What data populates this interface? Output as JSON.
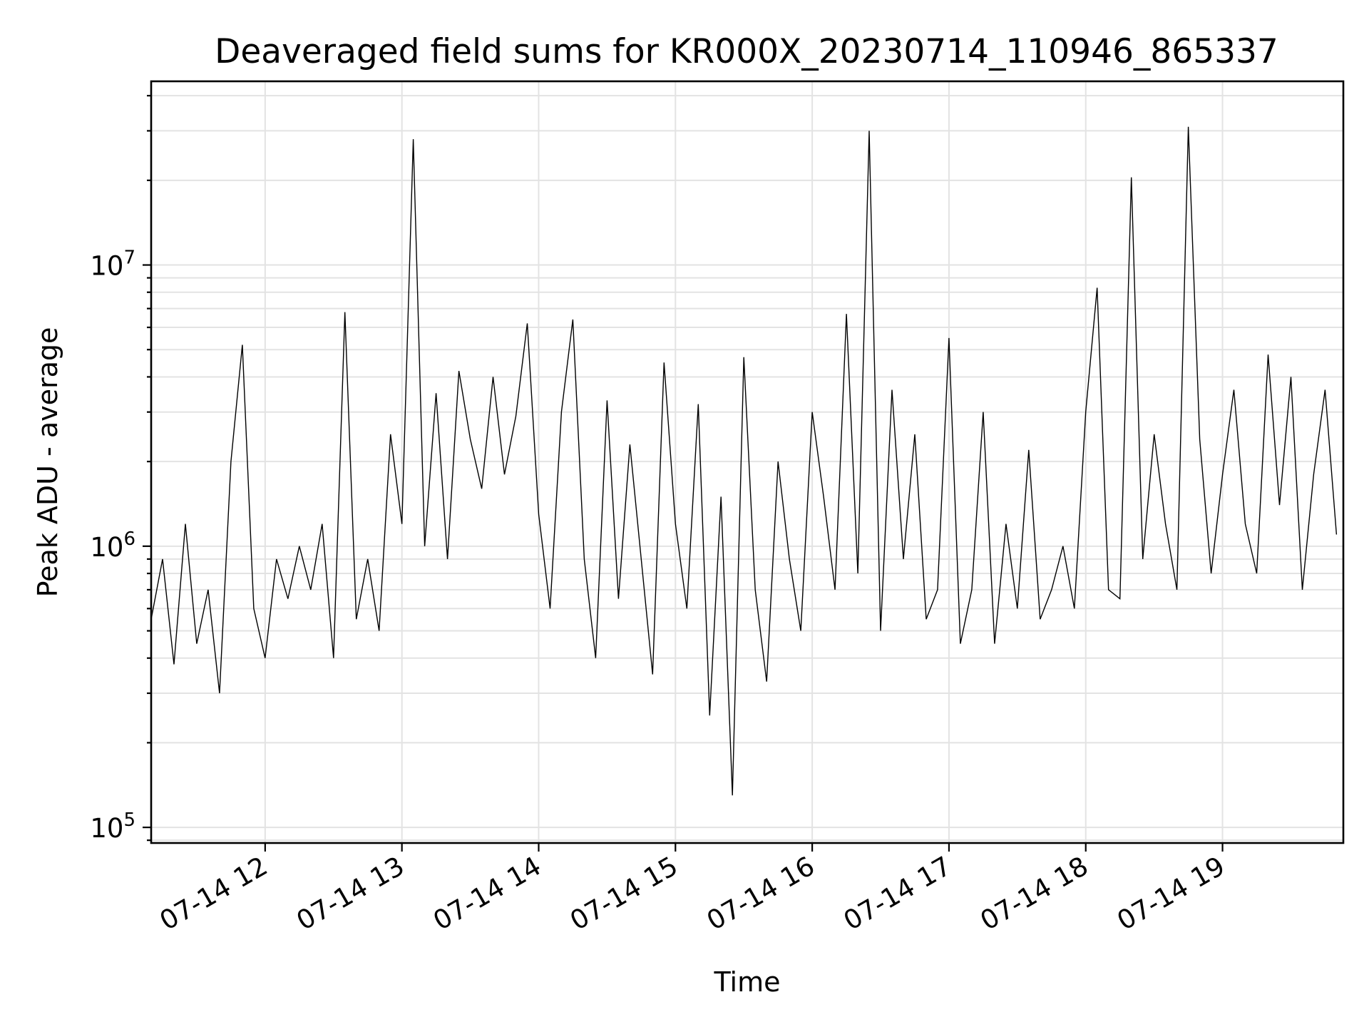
{
  "chart_data": {
    "type": "line",
    "title": "Deaveraged field sums for KR000X_20230714_110946_865337",
    "xlabel": "Time",
    "ylabel": "Peak ADU - average",
    "yscale": "log",
    "ylim": [
      88000,
      45000000
    ],
    "xlim": [
      "2023-07-14 11:10",
      "2023-07-14 19:53"
    ],
    "grid": true,
    "legend": "none",
    "line_color": "#000000",
    "x_ticks": [
      "07-14 12",
      "07-14 13",
      "07-14 14",
      "07-14 15",
      "07-14 16",
      "07-14 17",
      "07-14 18",
      "07-14 19"
    ],
    "y_ticks": [
      {
        "value": 100000,
        "base": "10",
        "exp": "5"
      },
      {
        "value": 1000000,
        "base": "10",
        "exp": "6"
      },
      {
        "value": 10000000,
        "base": "10",
        "exp": "7"
      }
    ],
    "series": [
      {
        "x": [
          "2023-07-14 11:10",
          "2023-07-14 11:15",
          "2023-07-14 11:20",
          "2023-07-14 11:25",
          "2023-07-14 11:30",
          "2023-07-14 11:35",
          "2023-07-14 11:40",
          "2023-07-14 11:45",
          "2023-07-14 11:50",
          "2023-07-14 11:55",
          "2023-07-14 12:00",
          "2023-07-14 12:05",
          "2023-07-14 12:10",
          "2023-07-14 12:15",
          "2023-07-14 12:20",
          "2023-07-14 12:25",
          "2023-07-14 12:30",
          "2023-07-14 12:35",
          "2023-07-14 12:40",
          "2023-07-14 12:45",
          "2023-07-14 12:50",
          "2023-07-14 12:55",
          "2023-07-14 13:00",
          "2023-07-14 13:05",
          "2023-07-14 13:10",
          "2023-07-14 13:15",
          "2023-07-14 13:20",
          "2023-07-14 13:25",
          "2023-07-14 13:30",
          "2023-07-14 13:35",
          "2023-07-14 13:40",
          "2023-07-14 13:45",
          "2023-07-14 13:50",
          "2023-07-14 13:55",
          "2023-07-14 14:00",
          "2023-07-14 14:05",
          "2023-07-14 14:10",
          "2023-07-14 14:15",
          "2023-07-14 14:20",
          "2023-07-14 14:25",
          "2023-07-14 14:30",
          "2023-07-14 14:35",
          "2023-07-14 14:40",
          "2023-07-14 14:45",
          "2023-07-14 14:50",
          "2023-07-14 14:55",
          "2023-07-14 15:00",
          "2023-07-14 15:05",
          "2023-07-14 15:10",
          "2023-07-14 15:15",
          "2023-07-14 15:20",
          "2023-07-14 15:25",
          "2023-07-14 15:30",
          "2023-07-14 15:35",
          "2023-07-14 15:40",
          "2023-07-14 15:45",
          "2023-07-14 15:50",
          "2023-07-14 15:55",
          "2023-07-14 16:00",
          "2023-07-14 16:05",
          "2023-07-14 16:10",
          "2023-07-14 16:15",
          "2023-07-14 16:20",
          "2023-07-14 16:25",
          "2023-07-14 16:30",
          "2023-07-14 16:35",
          "2023-07-14 16:40",
          "2023-07-14 16:45",
          "2023-07-14 16:50",
          "2023-07-14 16:55",
          "2023-07-14 17:00",
          "2023-07-14 17:05",
          "2023-07-14 17:10",
          "2023-07-14 17:15",
          "2023-07-14 17:20",
          "2023-07-14 17:25",
          "2023-07-14 17:30",
          "2023-07-14 17:35",
          "2023-07-14 17:40",
          "2023-07-14 17:45",
          "2023-07-14 17:50",
          "2023-07-14 17:55",
          "2023-07-14 18:00",
          "2023-07-14 18:05",
          "2023-07-14 18:10",
          "2023-07-14 18:15",
          "2023-07-14 18:20",
          "2023-07-14 18:25",
          "2023-07-14 18:30",
          "2023-07-14 18:35",
          "2023-07-14 18:40",
          "2023-07-14 18:45",
          "2023-07-14 18:50",
          "2023-07-14 18:55",
          "2023-07-14 19:00",
          "2023-07-14 19:05",
          "2023-07-14 19:10",
          "2023-07-14 19:15",
          "2023-07-14 19:20",
          "2023-07-14 19:25",
          "2023-07-14 19:30",
          "2023-07-14 19:35",
          "2023-07-14 19:40",
          "2023-07-14 19:45",
          "2023-07-14 19:50"
        ],
        "y": [
          550000,
          900000,
          380000,
          1200000,
          450000,
          700000,
          300000,
          2000000,
          5200000,
          600000,
          400000,
          900000,
          650000,
          1000000,
          700000,
          1200000,
          400000,
          6800000,
          550000,
          900000,
          500000,
          2500000,
          1200000,
          28000000,
          1000000,
          3500000,
          900000,
          4200000,
          2400000,
          1600000,
          4000000,
          1800000,
          2900000,
          6200000,
          1300000,
          600000,
          3000000,
          6400000,
          900000,
          400000,
          3300000,
          650000,
          2300000,
          900000,
          350000,
          4500000,
          1200000,
          600000,
          3200000,
          250000,
          1500000,
          130000,
          4700000,
          700000,
          330000,
          2000000,
          900000,
          500000,
          3000000,
          1500000,
          700000,
          6700000,
          800000,
          30000000,
          500000,
          3600000,
          900000,
          2500000,
          550000,
          700000,
          5500000,
          450000,
          700000,
          3000000,
          450000,
          1200000,
          600000,
          2200000,
          550000,
          700000,
          1000000,
          600000,
          3000000,
          8300000,
          700000,
          650000,
          20500000,
          900000,
          2500000,
          1200000,
          700000,
          31000000,
          2400000,
          800000,
          1800000,
          3600000,
          1200000,
          800000,
          4800000,
          1400000,
          4000000,
          700000,
          1800000,
          3600000,
          1100000
        ]
      }
    ]
  }
}
